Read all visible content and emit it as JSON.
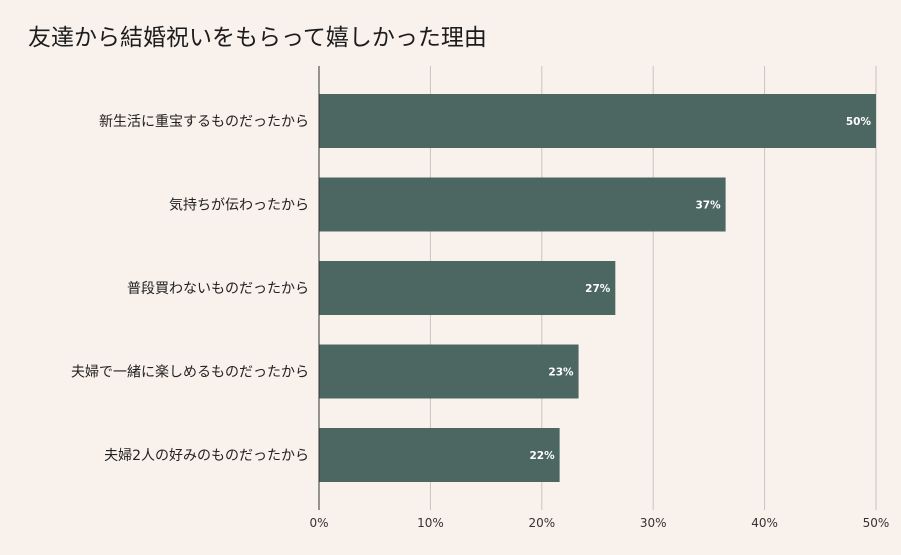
{
  "chart_data": {
    "type": "bar",
    "orientation": "horizontal",
    "title": "友達から結婚祝いをもらって嬉しかった理由",
    "categories": [
      "新生活に重宝するものだったから",
      "気持ちが伝わったから",
      "普段買わないものだったから",
      "夫婦で一緒に楽しめるものだったから",
      "夫婦2人の好みのものだったから"
    ],
    "values": [
      50,
      36.5,
      26.6,
      23.3,
      21.6
    ],
    "data_labels": [
      "50%",
      "37%",
      "27%",
      "23%",
      "22%"
    ],
    "xlim": [
      0,
      50
    ],
    "xticks": [
      0,
      10,
      20,
      30,
      40,
      50
    ],
    "xtick_labels": [
      "0%",
      "10%",
      "20%",
      "30%",
      "40%",
      "50%"
    ],
    "xlabel": "",
    "ylabel": "",
    "grid": "vertical",
    "legend": "none",
    "bar_color": "#4c6661",
    "grid_color": "#c8c4c1",
    "axis_color": "#333333",
    "background_color": "#f9f1ec"
  }
}
